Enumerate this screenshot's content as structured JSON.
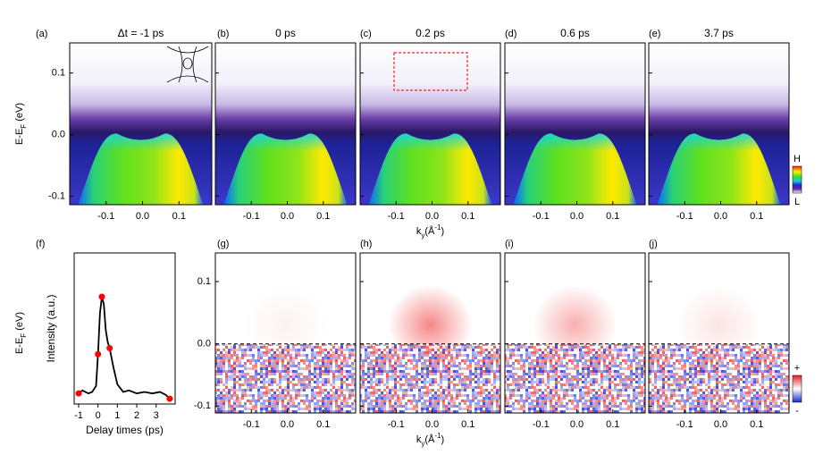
{
  "chart_data": [
    {
      "type": "image",
      "style": "band",
      "label": "(a)",
      "title": "Δt = -1 ps",
      "xlim": [
        -0.2,
        0.19
      ],
      "ylim": [
        -0.114,
        0.149
      ],
      "xticks": [
        -0.1,
        {
          "value": 0,
          "label": "0.0"
        },
        0.1
      ],
      "yticks": [
        -0.1,
        {
          "value": 0,
          "label": "0.0"
        },
        0.1
      ],
      "ylabel": {
        "base": "E-E",
        "sub": "F",
        "rest": " (eV)"
      }
    },
    {
      "type": "image",
      "style": "band",
      "label": "(b)",
      "title": "0 ps",
      "xlim": [
        -0.2,
        0.19
      ],
      "ylim": [
        -0.114,
        0.149
      ],
      "xticks": [
        -0.1,
        {
          "value": 0,
          "label": "0.0"
        },
        0.1
      ]
    },
    {
      "type": "image",
      "style": "band",
      "label": "(c)",
      "title": "0.2 ps",
      "xlim": [
        -0.2,
        0.19
      ],
      "ylim": [
        -0.114,
        0.149
      ],
      "xticks": [
        -0.1,
        {
          "value": 0,
          "label": "0.0"
        },
        0.1
      ],
      "xlabel": {
        "base": "k",
        "sub": "y",
        "rest": "(Å",
        "sup": "-1",
        "close": ")"
      }
    },
    {
      "type": "image",
      "style": "band",
      "label": "(d)",
      "title": "0.6 ps",
      "xlim": [
        -0.2,
        0.19
      ],
      "ylim": [
        -0.114,
        0.149
      ],
      "xticks": [
        -0.1,
        {
          "value": 0,
          "label": "0.0"
        },
        0.1
      ]
    },
    {
      "type": "image",
      "style": "band",
      "label": "(e)",
      "title": "3.7 ps",
      "xlim": [
        -0.2,
        0.19
      ],
      "ylim": [
        -0.114,
        0.149
      ],
      "xticks": [
        -0.1,
        {
          "value": 0,
          "label": "0.0"
        },
        0.1
      ],
      "colorbar": {
        "top": "H",
        "bottom": "L"
      }
    },
    {
      "type": "line",
      "label": "(f)",
      "xlim": [
        -1.23,
        3.98
      ],
      "ylim": [
        0,
        1
      ],
      "xticks": [
        -1,
        0,
        1,
        2,
        3
      ],
      "xlabel": "Delay times (ps)",
      "ylabel": "Intensity (a.u.)",
      "series": [
        {
          "color": "#000000",
          "x": [
            -1.1,
            -1,
            -0.8,
            -0.5,
            -0.3,
            -0.1,
            0,
            0.1,
            0.2,
            0.3,
            0.4,
            0.5,
            0.6,
            0.8,
            1,
            1.3,
            1.6,
            2,
            2.4,
            2.8,
            3.2,
            3.5,
            3.7
          ],
          "values": [
            0.08,
            0.07,
            0.09,
            0.07,
            0.08,
            0.12,
            0.33,
            0.6,
            0.71,
            0.66,
            0.49,
            0.41,
            0.37,
            0.24,
            0.13,
            0.08,
            0.09,
            0.07,
            0.08,
            0.07,
            0.08,
            0.06,
            0.035
          ]
        },
        {
          "color": "#ff0000",
          "markers": true,
          "x": [
            -1,
            0,
            0.2,
            0.6,
            3.7
          ],
          "values": [
            0.07,
            0.33,
            0.71,
            0.37,
            0.035
          ]
        }
      ]
    },
    {
      "type": "image",
      "style": "diff",
      "label": "(g)",
      "xlim": [
        -0.2,
        0.19
      ],
      "ylim": [
        -0.111,
        0.146
      ],
      "xticks": [
        -0.1,
        {
          "value": 0,
          "label": "0.0"
        },
        0.1
      ],
      "yticks": [
        -0.1,
        {
          "value": 0,
          "label": "0.0"
        },
        0.1
      ],
      "ylabel": {
        "base": "E-E",
        "sub": "F",
        "rest": " (eV)"
      }
    },
    {
      "type": "image",
      "style": "diff",
      "label": "(h)",
      "xlim": [
        -0.2,
        0.19
      ],
      "ylim": [
        -0.111,
        0.146
      ],
      "xticks": [
        -0.1,
        {
          "value": 0,
          "label": "0.0"
        },
        0.1
      ],
      "xlabel": {
        "base": "k",
        "sub": "y",
        "rest": "(Å",
        "sup": "-1",
        "close": ")"
      }
    },
    {
      "type": "image",
      "style": "diff",
      "label": "(i)",
      "xlim": [
        -0.2,
        0.19
      ],
      "ylim": [
        -0.111,
        0.146
      ],
      "xticks": [
        -0.1,
        {
          "value": 0,
          "label": "0.0"
        },
        0.1
      ]
    },
    {
      "type": "image",
      "style": "diff",
      "label": "(j)",
      "xlim": [
        -0.2,
        0.19
      ],
      "ylim": [
        -0.111,
        0.146
      ],
      "xticks": [
        -0.1,
        {
          "value": 0,
          "label": "0.0"
        },
        0.1
      ],
      "colorbar": {
        "top": "+",
        "bottom": "-"
      }
    }
  ]
}
